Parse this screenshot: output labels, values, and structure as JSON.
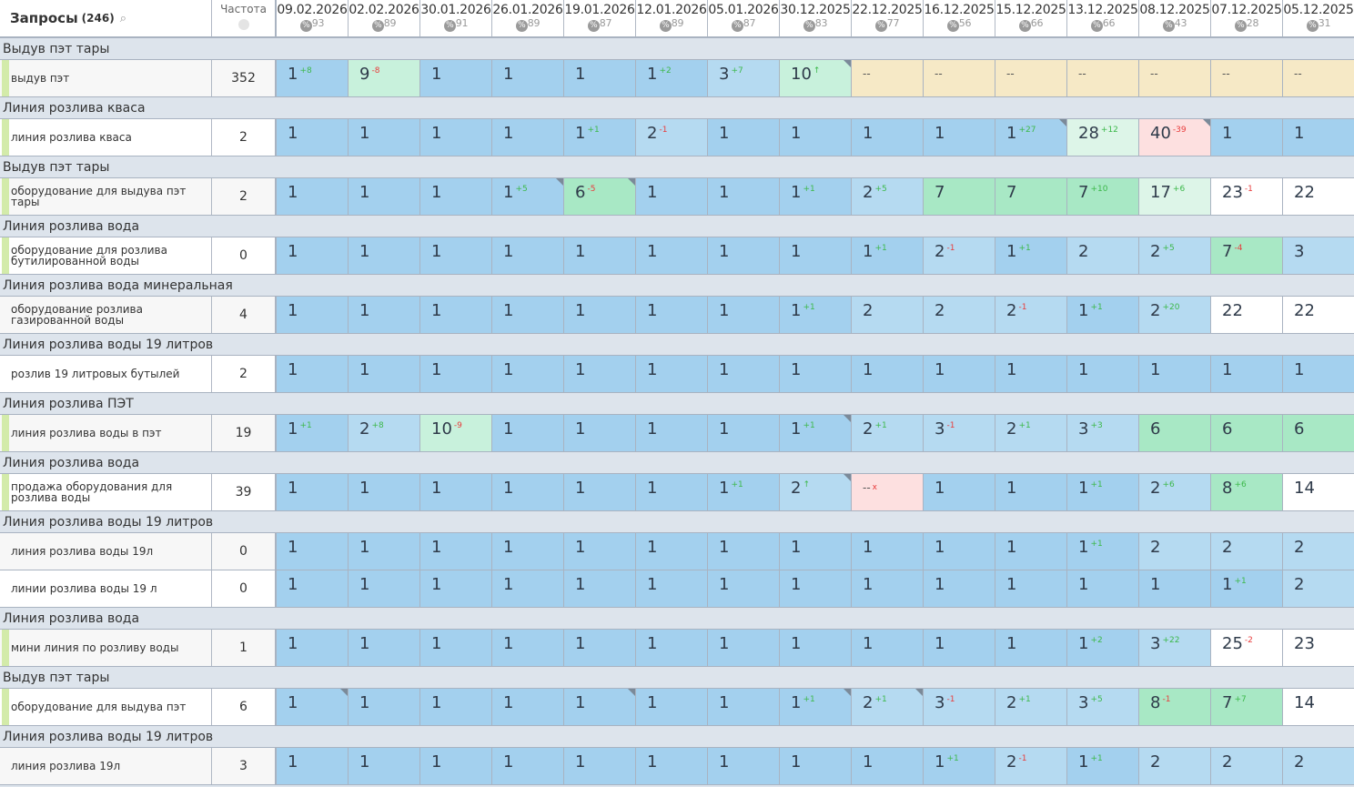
{
  "header": {
    "title": "Запросы",
    "count": "(246)",
    "search_icon": "search-icon",
    "freq_label": "Частота",
    "freq_icon": "globe-icon",
    "percent_icon_label": "%",
    "dates": [
      {
        "date": "09.02.2026",
        "pct": "93"
      },
      {
        "date": "02.02.2026",
        "pct": "89"
      },
      {
        "date": "30.01.2026",
        "pct": "91"
      },
      {
        "date": "26.01.2026",
        "pct": "89"
      },
      {
        "date": "19.01.2026",
        "pct": "87"
      },
      {
        "date": "12.01.2026",
        "pct": "89"
      },
      {
        "date": "05.01.2026",
        "pct": "87"
      },
      {
        "date": "30.12.2025",
        "pct": "83"
      },
      {
        "date": "22.12.2025",
        "pct": "77"
      },
      {
        "date": "16.12.2025",
        "pct": "56"
      },
      {
        "date": "15.12.2025",
        "pct": "66"
      },
      {
        "date": "13.12.2025",
        "pct": "66"
      },
      {
        "date": "08.12.2025",
        "pct": "43"
      },
      {
        "date": "07.12.2025",
        "pct": "28"
      },
      {
        "date": "05.12.2025",
        "pct": "31"
      }
    ]
  },
  "colors": {
    "B": "#a3d0ee",
    "L": "#b5daf1",
    "G": "#a8e8c5",
    "M": "#c8f1dc",
    "P": "#ddf5e8",
    "W": "#ffffff",
    "Y": "#f6e9c6",
    "R": "#fde0e0",
    "up": "#3cb84a",
    "down": "#e83c3c"
  },
  "rows": [
    {
      "group": "Выдув пэт тары",
      "query": "выдув пэт",
      "freq": "352",
      "marked": true,
      "cells": [
        [
          "1",
          "+8",
          "B"
        ],
        [
          "9",
          "-8",
          "M"
        ],
        [
          "1",
          "",
          "B"
        ],
        [
          "1",
          "",
          "B"
        ],
        [
          "1",
          "",
          "B"
        ],
        [
          "1",
          "+2",
          "B"
        ],
        [
          "3",
          "+7",
          "L"
        ],
        [
          "10",
          "↑",
          "M",
          1
        ],
        [
          "--",
          "",
          "Y"
        ],
        [
          "--",
          "",
          "Y"
        ],
        [
          "--",
          "",
          "Y"
        ],
        [
          "--",
          "",
          "Y"
        ],
        [
          "--",
          "",
          "Y"
        ],
        [
          "--",
          "",
          "Y"
        ],
        [
          "--",
          "",
          "Y"
        ]
      ]
    },
    {
      "group": "Линия розлива кваса",
      "query": "линия розлива кваса",
      "freq": "2",
      "marked": true,
      "cells": [
        [
          "1",
          "",
          "B"
        ],
        [
          "1",
          "",
          "B"
        ],
        [
          "1",
          "",
          "B"
        ],
        [
          "1",
          "",
          "B"
        ],
        [
          "1",
          "+1",
          "B"
        ],
        [
          "2",
          "-1",
          "L"
        ],
        [
          "1",
          "",
          "B"
        ],
        [
          "1",
          "",
          "B"
        ],
        [
          "1",
          "",
          "B"
        ],
        [
          "1",
          "",
          "B"
        ],
        [
          "1",
          "+27",
          "B",
          1
        ],
        [
          "28",
          "+12",
          "P"
        ],
        [
          "40",
          "-39",
          "R",
          1
        ],
        [
          "1",
          "",
          "B"
        ],
        [
          "1",
          "",
          "B"
        ]
      ]
    },
    {
      "group": "Выдув пэт тары",
      "query": "оборудование для выдува пэт тары",
      "freq": "2",
      "marked": true,
      "cells": [
        [
          "1",
          "",
          "B"
        ],
        [
          "1",
          "",
          "B"
        ],
        [
          "1",
          "",
          "B"
        ],
        [
          "1",
          "+5",
          "B",
          1
        ],
        [
          "6",
          "-5",
          "G",
          1
        ],
        [
          "1",
          "",
          "B"
        ],
        [
          "1",
          "",
          "B"
        ],
        [
          "1",
          "+1",
          "B"
        ],
        [
          "2",
          "+5",
          "L"
        ],
        [
          "7",
          "",
          "G"
        ],
        [
          "7",
          "",
          "G"
        ],
        [
          "7",
          "+10",
          "G"
        ],
        [
          "17",
          "+6",
          "P"
        ],
        [
          "23",
          "-1",
          "W"
        ],
        [
          "22",
          "",
          "W"
        ]
      ]
    },
    {
      "group": "Линия розлива вода",
      "query": "оборудование для розлива бутилированной воды",
      "freq": "0",
      "marked": true,
      "cells": [
        [
          "1",
          "",
          "B"
        ],
        [
          "1",
          "",
          "B"
        ],
        [
          "1",
          "",
          "B"
        ],
        [
          "1",
          "",
          "B"
        ],
        [
          "1",
          "",
          "B"
        ],
        [
          "1",
          "",
          "B"
        ],
        [
          "1",
          "",
          "B"
        ],
        [
          "1",
          "",
          "B"
        ],
        [
          "1",
          "+1",
          "B"
        ],
        [
          "2",
          "-1",
          "L"
        ],
        [
          "1",
          "+1",
          "B"
        ],
        [
          "2",
          "",
          "L"
        ],
        [
          "2",
          "+5",
          "L"
        ],
        [
          "7",
          "-4",
          "G"
        ],
        [
          "3",
          "",
          "L"
        ]
      ]
    },
    {
      "group": "Линия розлива вода минеральная",
      "query": "оборудование розлива газированной воды",
      "freq": "4",
      "marked": false,
      "cells": [
        [
          "1",
          "",
          "B"
        ],
        [
          "1",
          "",
          "B"
        ],
        [
          "1",
          "",
          "B"
        ],
        [
          "1",
          "",
          "B"
        ],
        [
          "1",
          "",
          "B"
        ],
        [
          "1",
          "",
          "B"
        ],
        [
          "1",
          "",
          "B"
        ],
        [
          "1",
          "+1",
          "B"
        ],
        [
          "2",
          "",
          "L"
        ],
        [
          "2",
          "",
          "L"
        ],
        [
          "2",
          "-1",
          "L"
        ],
        [
          "1",
          "+1",
          "B"
        ],
        [
          "2",
          "+20",
          "L"
        ],
        [
          "22",
          "",
          "W"
        ],
        [
          "22",
          "",
          "W"
        ]
      ]
    },
    {
      "group": "Линия розлива воды 19 литров",
      "query": "розлив 19 литровых бутылей",
      "freq": "2",
      "marked": false,
      "cells": [
        [
          "1",
          "",
          "B"
        ],
        [
          "1",
          "",
          "B"
        ],
        [
          "1",
          "",
          "B"
        ],
        [
          "1",
          "",
          "B"
        ],
        [
          "1",
          "",
          "B"
        ],
        [
          "1",
          "",
          "B"
        ],
        [
          "1",
          "",
          "B"
        ],
        [
          "1",
          "",
          "B"
        ],
        [
          "1",
          "",
          "B"
        ],
        [
          "1",
          "",
          "B"
        ],
        [
          "1",
          "",
          "B"
        ],
        [
          "1",
          "",
          "B"
        ],
        [
          "1",
          "",
          "B"
        ],
        [
          "1",
          "",
          "B"
        ],
        [
          "1",
          "",
          "B"
        ]
      ]
    },
    {
      "group": "Линия розлива ПЭТ",
      "query": "линия розлива воды в пэт",
      "freq": "19",
      "marked": true,
      "cells": [
        [
          "1",
          "+1",
          "B"
        ],
        [
          "2",
          "+8",
          "L"
        ],
        [
          "10",
          "-9",
          "M"
        ],
        [
          "1",
          "",
          "B"
        ],
        [
          "1",
          "",
          "B"
        ],
        [
          "1",
          "",
          "B"
        ],
        [
          "1",
          "",
          "B"
        ],
        [
          "1",
          "+1",
          "B",
          1
        ],
        [
          "2",
          "+1",
          "L"
        ],
        [
          "3",
          "-1",
          "L"
        ],
        [
          "2",
          "+1",
          "L"
        ],
        [
          "3",
          "+3",
          "L"
        ],
        [
          "6",
          "",
          "G"
        ],
        [
          "6",
          "",
          "G"
        ],
        [
          "6",
          "",
          "G"
        ]
      ]
    },
    {
      "group": "Линия розлива вода",
      "query": "продажа оборудования для розлива воды",
      "freq": "39",
      "marked": true,
      "cells": [
        [
          "1",
          "",
          "B"
        ],
        [
          "1",
          "",
          "B"
        ],
        [
          "1",
          "",
          "B"
        ],
        [
          "1",
          "",
          "B"
        ],
        [
          "1",
          "",
          "B"
        ],
        [
          "1",
          "",
          "B"
        ],
        [
          "1",
          "+1",
          "B"
        ],
        [
          "2",
          "↑",
          "L",
          1
        ],
        [
          "--",
          "x",
          "R"
        ],
        [
          "1",
          "",
          "B"
        ],
        [
          "1",
          "",
          "B"
        ],
        [
          "1",
          "+1",
          "B"
        ],
        [
          "2",
          "+6",
          "L"
        ],
        [
          "8",
          "+6",
          "G"
        ],
        [
          "14",
          "",
          "W"
        ]
      ]
    },
    {
      "group": "Линия розлива воды 19 литров",
      "query": "линия розлива воды 19л",
      "freq": "0",
      "marked": false,
      "cells": [
        [
          "1",
          "",
          "B"
        ],
        [
          "1",
          "",
          "B"
        ],
        [
          "1",
          "",
          "B"
        ],
        [
          "1",
          "",
          "B"
        ],
        [
          "1",
          "",
          "B"
        ],
        [
          "1",
          "",
          "B"
        ],
        [
          "1",
          "",
          "B"
        ],
        [
          "1",
          "",
          "B"
        ],
        [
          "1",
          "",
          "B"
        ],
        [
          "1",
          "",
          "B"
        ],
        [
          "1",
          "",
          "B"
        ],
        [
          "1",
          "+1",
          "B"
        ],
        [
          "2",
          "",
          "L"
        ],
        [
          "2",
          "",
          "L"
        ],
        [
          "2",
          "",
          "L"
        ]
      ]
    },
    {
      "group": "",
      "query": "линии розлива воды 19 л",
      "freq": "0",
      "marked": false,
      "cells": [
        [
          "1",
          "",
          "B"
        ],
        [
          "1",
          "",
          "B"
        ],
        [
          "1",
          "",
          "B"
        ],
        [
          "1",
          "",
          "B"
        ],
        [
          "1",
          "",
          "B"
        ],
        [
          "1",
          "",
          "B"
        ],
        [
          "1",
          "",
          "B"
        ],
        [
          "1",
          "",
          "B"
        ],
        [
          "1",
          "",
          "B"
        ],
        [
          "1",
          "",
          "B"
        ],
        [
          "1",
          "",
          "B"
        ],
        [
          "1",
          "",
          "B"
        ],
        [
          "1",
          "",
          "B"
        ],
        [
          "1",
          "+1",
          "B"
        ],
        [
          "2",
          "",
          "L"
        ]
      ]
    },
    {
      "group": "Линия розлива вода",
      "query": "мини линия по розливу воды",
      "freq": "1",
      "marked": true,
      "cells": [
        [
          "1",
          "",
          "B"
        ],
        [
          "1",
          "",
          "B"
        ],
        [
          "1",
          "",
          "B"
        ],
        [
          "1",
          "",
          "B"
        ],
        [
          "1",
          "",
          "B"
        ],
        [
          "1",
          "",
          "B"
        ],
        [
          "1",
          "",
          "B"
        ],
        [
          "1",
          "",
          "B"
        ],
        [
          "1",
          "",
          "B"
        ],
        [
          "1",
          "",
          "B"
        ],
        [
          "1",
          "",
          "B"
        ],
        [
          "1",
          "+2",
          "B"
        ],
        [
          "3",
          "+22",
          "L"
        ],
        [
          "25",
          "-2",
          "W"
        ],
        [
          "23",
          "",
          "W"
        ]
      ]
    },
    {
      "group": "Выдув пэт тары",
      "query": "оборудование для выдува пэт",
      "freq": "6",
      "marked": true,
      "cells": [
        [
          "1",
          "",
          "B",
          1
        ],
        [
          "1",
          "",
          "B"
        ],
        [
          "1",
          "",
          "B"
        ],
        [
          "1",
          "",
          "B"
        ],
        [
          "1",
          "",
          "B",
          1
        ],
        [
          "1",
          "",
          "B"
        ],
        [
          "1",
          "",
          "B"
        ],
        [
          "1",
          "+1",
          "B",
          1
        ],
        [
          "2",
          "+1",
          "L",
          1
        ],
        [
          "3",
          "-1",
          "L"
        ],
        [
          "2",
          "+1",
          "L"
        ],
        [
          "3",
          "+5",
          "L"
        ],
        [
          "8",
          "-1",
          "G"
        ],
        [
          "7",
          "+7",
          "G"
        ],
        [
          "14",
          "",
          "W"
        ]
      ]
    },
    {
      "group": "Линия розлива воды 19 литров",
      "query": "линия розлива 19л",
      "freq": "3",
      "marked": false,
      "cells": [
        [
          "1",
          "",
          "B"
        ],
        [
          "1",
          "",
          "B"
        ],
        [
          "1",
          "",
          "B"
        ],
        [
          "1",
          "",
          "B"
        ],
        [
          "1",
          "",
          "B"
        ],
        [
          "1",
          "",
          "B"
        ],
        [
          "1",
          "",
          "B"
        ],
        [
          "1",
          "",
          "B"
        ],
        [
          "1",
          "",
          "B"
        ],
        [
          "1",
          "+1",
          "B"
        ],
        [
          "2",
          "-1",
          "L"
        ],
        [
          "1",
          "+1",
          "B"
        ],
        [
          "2",
          "",
          "L"
        ],
        [
          "2",
          "",
          "L"
        ],
        [
          "2",
          "",
          "L"
        ]
      ]
    }
  ]
}
